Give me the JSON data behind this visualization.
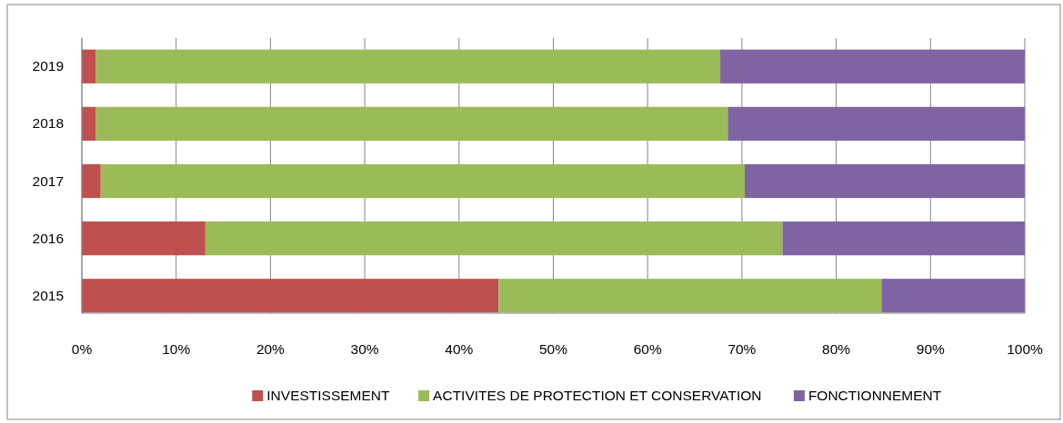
{
  "chart_data": {
    "type": "bar",
    "orientation": "horizontal",
    "stacked": true,
    "categories": [
      "2019",
      "2018",
      "2017",
      "2016",
      "2015"
    ],
    "series": [
      {
        "name": "INVESTISSEMENT",
        "color": "#c0504d",
        "values": [
          1.5,
          1.5,
          2.0,
          13.1,
          44.2
        ]
      },
      {
        "name": "ACTIVITES DE PROTECTION ET CONSERVATION",
        "color": "#9bbb59",
        "values": [
          66.2,
          67.0,
          68.3,
          61.2,
          40.6
        ]
      },
      {
        "name": "FONCTIONNEMENT",
        "color": "#8064a2",
        "values": [
          32.3,
          31.5,
          29.7,
          25.7,
          15.2
        ]
      }
    ],
    "xlim": [
      0,
      100
    ],
    "xticks": [
      {
        "value": 0,
        "label": "0%"
      },
      {
        "value": 10,
        "label": "10%"
      },
      {
        "value": 20,
        "label": "20%"
      },
      {
        "value": 30,
        "label": "30%"
      },
      {
        "value": 40,
        "label": "40%"
      },
      {
        "value": 50,
        "label": "50%"
      },
      {
        "value": 60,
        "label": "60%"
      },
      {
        "value": 70,
        "label": "70%"
      },
      {
        "value": 80,
        "label": "80%"
      },
      {
        "value": 90,
        "label": "90%"
      },
      {
        "value": 100,
        "label": "100%"
      }
    ],
    "grid": "x",
    "legend": "bottom"
  }
}
